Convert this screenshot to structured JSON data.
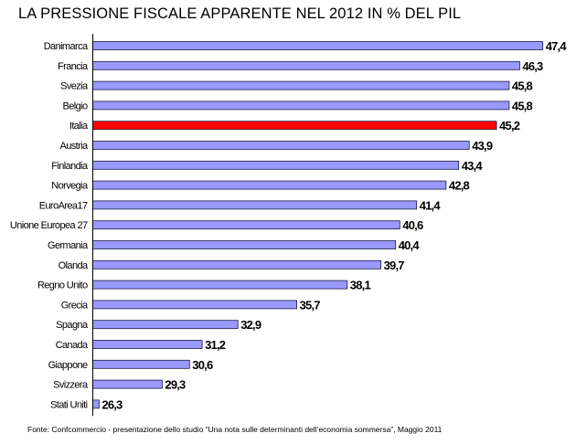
{
  "title": "LA PRESSIONE FISCALE APPARENTE NEL 2012 IN % DEL PIL",
  "source": "Fonte: Confcommercio - presentazione dello studio “Una nota sulle determinanti dell’economia sommersa”, Maggio 2011",
  "colors": {
    "bar": "#9999ff",
    "highlight": "#ff0000",
    "bar_border": "#1a1a40"
  },
  "chart_data": {
    "type": "bar",
    "orientation": "horizontal",
    "title": "LA PRESSIONE FISCALE APPARENTE NEL 2012 IN % DEL PIL",
    "categories": [
      "Danimarca",
      "Francia",
      "Svezia",
      "Belgio",
      "Italia",
      "Austria",
      "Finlandia",
      "Norvegia",
      "EuroArea17",
      "Unione Europea 27",
      "Germania",
      "Olanda",
      "Regno Unito",
      "Grecia",
      "Spagna",
      "Canada",
      "Giappone",
      "Svizzera",
      "Stati Uniti"
    ],
    "values": [
      47.4,
      46.3,
      45.8,
      45.8,
      45.2,
      43.9,
      43.4,
      42.8,
      41.4,
      40.6,
      40.4,
      39.7,
      38.1,
      35.7,
      32.9,
      31.2,
      30.6,
      29.3,
      26.3
    ],
    "value_labels": [
      "47,4",
      "46,3",
      "45,8",
      "45,8",
      "45,2",
      "43,9",
      "43,4",
      "42,8",
      "41,4",
      "40,6",
      "40,4",
      "39,7",
      "38,1",
      "35,7",
      "32,9",
      "31,2",
      "30,6",
      "29,3",
      "26,3"
    ],
    "highlighted": "Italia",
    "xlim": [
      26,
      47.4
    ],
    "grid": false,
    "legend": "none"
  }
}
